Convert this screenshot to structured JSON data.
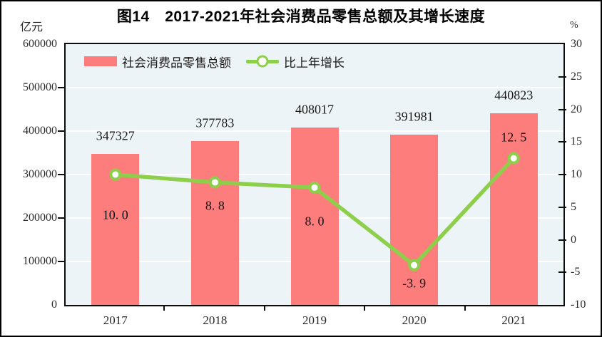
{
  "title": "图14　2017-2021年社会消费品零售总额及其增长速度",
  "left_axis_unit": "亿元",
  "right_axis_unit": "%",
  "legend": {
    "bar_label": "社会消费品零售总额",
    "line_label": "比上年增长"
  },
  "colors": {
    "bar": "#fd7d7d",
    "line": "#8dcf4a",
    "marker_fill": "#ffffff",
    "plot_background": "#edf4f7",
    "grid": "#ffffff",
    "axis": "#0d0d0d",
    "text": "#1e1e1e"
  },
  "chart_data": {
    "type": "bar+line",
    "title": "图14　2017-2021年社会消费品零售总额及其增长速度",
    "categories": [
      "2017",
      "2018",
      "2019",
      "2020",
      "2021"
    ],
    "series": [
      {
        "name": "社会消费品零售总额",
        "type": "bar",
        "axis": "left",
        "unit": "亿元",
        "values": [
          347327,
          377783,
          408017,
          391981,
          440823
        ],
        "value_labels": [
          "347327",
          "377783",
          "408017",
          "391981",
          "440823"
        ],
        "color": "#fd7d7d"
      },
      {
        "name": "比上年增长",
        "type": "line",
        "axis": "right",
        "unit": "%",
        "values": [
          10.0,
          8.8,
          8.0,
          -3.9,
          12.5
        ],
        "value_labels": [
          "10. 0",
          "8. 8",
          "8. 0",
          "-3. 9",
          "12. 5"
        ],
        "color": "#8dcf4a"
      }
    ],
    "left_axis": {
      "label": "亿元",
      "min": 0,
      "max": 600000,
      "step": 100000,
      "tick_labels": [
        "600000",
        "500000",
        "400000",
        "300000",
        "200000",
        "100000",
        "0"
      ]
    },
    "right_axis": {
      "label": "%",
      "min": -10,
      "max": 30,
      "step": 5,
      "tick_labels": [
        "30",
        "25",
        "20",
        "15",
        "10",
        "5",
        "0",
        "-5",
        "-10"
      ]
    },
    "grid": true,
    "legend_position": "top-left-inside"
  }
}
